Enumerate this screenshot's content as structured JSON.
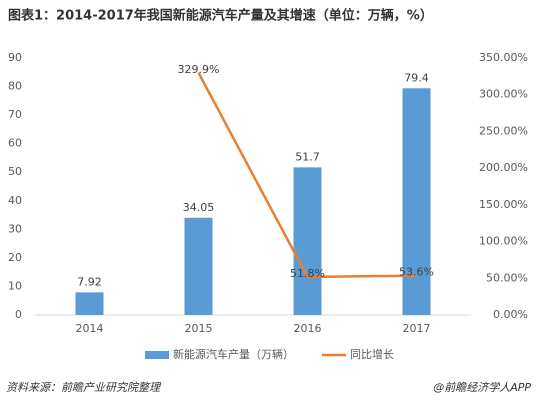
{
  "chart_data": {
    "type": "bar",
    "title": "图表1：2014-2017年我国新能源汽车产量及其增速（单位：万辆，%）",
    "categories": [
      "2014",
      "2015",
      "2016",
      "2017"
    ],
    "series": [
      {
        "name": "新能源汽车产量（万辆）",
        "type": "bar",
        "color": "#5b9bd5",
        "values": [
          7.92,
          34.05,
          51.7,
          79.4
        ]
      },
      {
        "name": "同比增长",
        "type": "line",
        "axis": "y2",
        "color": "#ed7d31",
        "values": [
          null,
          329.9,
          51.8,
          53.6
        ],
        "value_labels": [
          null,
          "329.9%",
          "51.8%",
          "53.6%"
        ]
      }
    ],
    "ylim": [
      0,
      90
    ],
    "yticks": [
      0,
      10,
      20,
      30,
      40,
      50,
      60,
      70,
      80,
      90
    ],
    "y2lim": [
      0,
      350
    ],
    "y2ticks": [
      {
        "value": 0,
        "label": "0.00%"
      },
      {
        "value": 50,
        "label": "50.00%"
      },
      {
        "value": 100,
        "label": "100.00%"
      },
      {
        "value": 150,
        "label": "150.00%"
      },
      {
        "value": 200,
        "label": "200.00%"
      },
      {
        "value": 250,
        "label": "250.00%"
      },
      {
        "value": 300,
        "label": "300.00%"
      },
      {
        "value": 350,
        "label": "350.00%"
      }
    ],
    "legend": "bottom",
    "source": "资料来源：前瞻产业研究院整理",
    "footer": "@前瞻经济学人APP"
  }
}
